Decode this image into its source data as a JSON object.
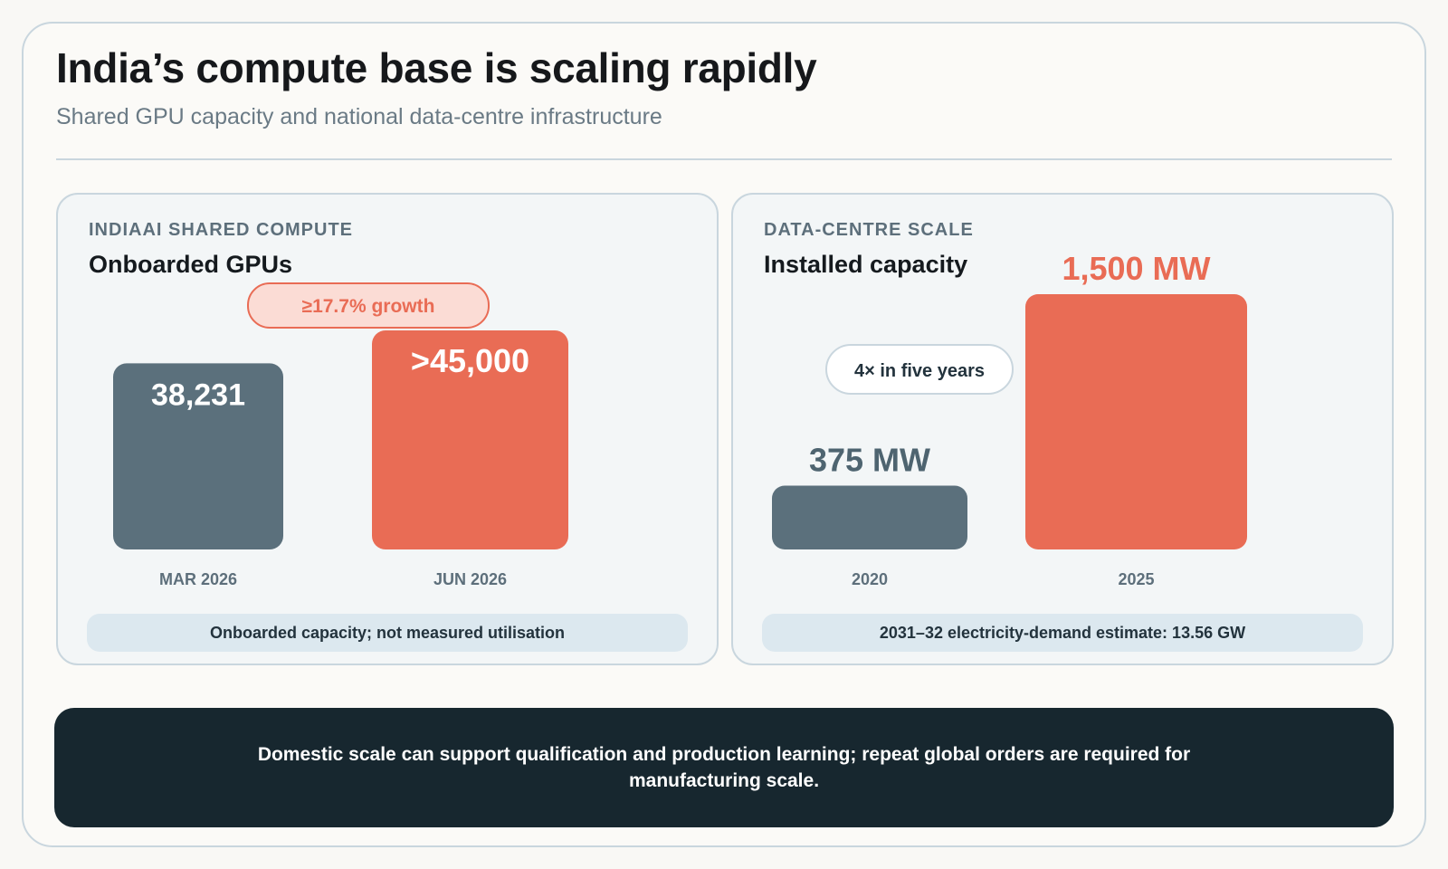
{
  "title": "India’s compute base is scaling rapidly",
  "subtitle": "Shared GPU capacity and national data-centre infrastructure",
  "colors": {
    "baseline": "#5b707c",
    "highlight": "#e96c55",
    "pill_fill": "#fbdcd5",
    "pill_border": "#e96c55",
    "white_pill_border": "#c9d6de",
    "label_dark": "#4e6470",
    "axis_label": "#5d6f7b"
  },
  "left_panel": {
    "eyebrow": "INDIAAI SHARED COMPUTE",
    "heading": "Onboarded GPUs",
    "note": "Onboarded capacity; not measured utilisation"
  },
  "right_panel": {
    "eyebrow": "DATA-CENTRE SCALE",
    "heading": "Installed capacity",
    "note": "2031–32 electricity-demand estimate: 13.56 GW"
  },
  "callout": "Domestic scale can support qualification and production learning; repeat global orders are required for manufacturing scale.",
  "chart_data": [
    {
      "type": "bar",
      "title": "Onboarded GPUs",
      "categories": [
        "MAR 2026",
        "JUN 2026"
      ],
      "values": [
        38231,
        45000
      ],
      "value_labels": [
        ">45,000"
      ],
      "value_labels_all": [
        "38,231",
        ">45,000"
      ],
      "annotation": "≥17.7% growth",
      "ylim": [
        0,
        45000
      ],
      "grid": false,
      "legend": "none"
    },
    {
      "type": "bar",
      "title": "Installed capacity",
      "categories": [
        "2020",
        "2025"
      ],
      "values": [
        375,
        1500
      ],
      "unit": "MW",
      "value_labels_all": [
        "375 MW",
        "1,500 MW"
      ],
      "annotation": "4× in five years",
      "ylim": [
        0,
        1500
      ],
      "grid": false,
      "legend": "none"
    }
  ]
}
